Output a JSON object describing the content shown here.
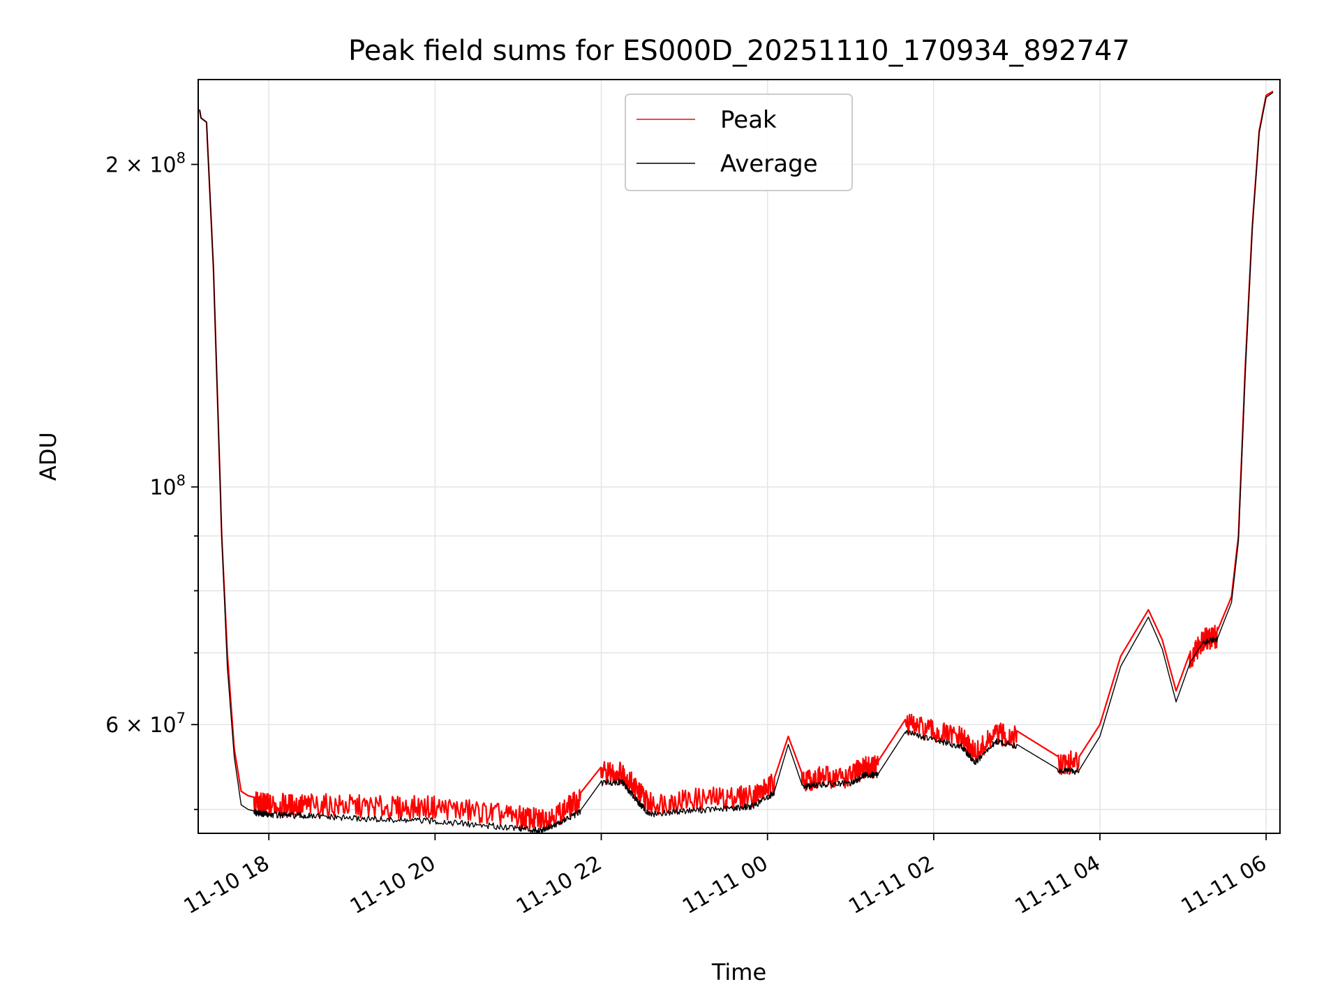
{
  "chart_data": {
    "type": "line",
    "title": "Peak field sums for ES000D_20251110_170934_892747",
    "xlabel": "Time",
    "ylabel": "ADU",
    "yscale": "log",
    "grid": true,
    "legend_placement": "upper-center",
    "xlim": [
      "2025-11-10 17:09",
      "2025-11-11 06:10"
    ],
    "ylim": [
      47500000,
      240000000
    ],
    "x_ticks": [
      {
        "value": "2025-11-10 18:00",
        "label": "11-10 18"
      },
      {
        "value": "2025-11-10 20:00",
        "label": "11-10 20"
      },
      {
        "value": "2025-11-10 22:00",
        "label": "11-10 22"
      },
      {
        "value": "2025-11-11 00:00",
        "label": "11-11 00"
      },
      {
        "value": "2025-11-11 02:00",
        "label": "11-11 02"
      },
      {
        "value": "2025-11-11 04:00",
        "label": "11-11 04"
      },
      {
        "value": "2025-11-11 06:00",
        "label": "11-11 06"
      }
    ],
    "y_ticks_major": [
      {
        "value": 60000000,
        "base": "6 × 10",
        "exp": "7"
      },
      {
        "value": 100000000,
        "base": "10",
        "exp": "8"
      },
      {
        "value": 200000000,
        "base": "2 × 10",
        "exp": "8"
      }
    ],
    "y_ticks_minor": [
      50000000,
      70000000,
      80000000,
      90000000
    ],
    "series": [
      {
        "name": "Peak",
        "color": "#ff0000",
        "x": [
          "2025-11-10 17:10",
          "2025-11-10 17:11",
          "2025-11-10 17:15",
          "2025-11-10 17:20",
          "2025-11-10 17:26",
          "2025-11-10 17:30",
          "2025-11-10 17:35",
          "2025-11-10 17:40",
          "2025-11-10 17:45",
          "2025-11-10 17:50",
          "2025-11-10 17:55",
          "2025-11-10 18:00",
          "2025-11-10 18:15",
          "2025-11-10 18:30",
          "2025-11-10 19:00",
          "2025-11-10 19:30",
          "2025-11-10 20:00",
          "2025-11-10 20:30",
          "2025-11-10 21:00",
          "2025-11-10 21:15",
          "2025-11-10 21:30",
          "2025-11-10 21:45",
          "2025-11-10 22:00",
          "2025-11-10 22:15",
          "2025-11-10 22:25",
          "2025-11-10 22:35",
          "2025-11-10 23:00",
          "2025-11-10 23:30",
          "2025-11-10 23:50",
          "2025-11-11 00:05",
          "2025-11-11 00:15",
          "2025-11-11 00:25",
          "2025-11-11 00:40",
          "2025-11-11 01:00",
          "2025-11-11 01:10",
          "2025-11-11 01:20",
          "2025-11-11 01:40",
          "2025-11-11 02:00",
          "2025-11-11 02:20",
          "2025-11-11 02:30",
          "2025-11-11 02:45",
          "2025-11-11 03:00",
          "2025-11-11 03:30",
          "2025-11-11 03:45",
          "2025-11-11 04:00",
          "2025-11-11 04:15",
          "2025-11-11 04:35",
          "2025-11-11 04:45",
          "2025-11-11 04:55",
          "2025-11-11 05:05",
          "2025-11-11 05:15",
          "2025-11-11 05:25",
          "2025-11-11 05:35",
          "2025-11-11 05:40",
          "2025-11-11 05:45",
          "2025-11-11 05:50",
          "2025-11-11 05:55",
          "2025-11-11 06:00",
          "2025-11-11 06:05"
        ],
        "values": [
          225000000,
          221000000,
          219000000,
          160000000,
          90000000,
          70000000,
          57000000,
          52000000,
          51500000,
          51300000,
          51200000,
          51100000,
          51100000,
          51100000,
          51000000,
          50800000,
          50900000,
          50400000,
          49800000,
          49500000,
          50200000,
          51800000,
          54800000,
          54800000,
          53000000,
          51200000,
          51700000,
          51900000,
          52200000,
          53500000,
          58500000,
          54000000,
          54200000,
          54300000,
          55500000,
          55500000,
          60800000,
          59800000,
          59000000,
          57000000,
          59500000,
          59200000,
          56000000,
          56000000,
          60000000,
          69500000,
          76800000,
          72000000,
          64500000,
          70000000,
          73000000,
          73500000,
          79000000,
          90000000,
          130000000,
          175000000,
          215000000,
          232000000,
          234000000
        ]
      },
      {
        "name": "Average",
        "color": "#000000",
        "x": [
          "2025-11-10 17:10",
          "2025-11-10 17:11",
          "2025-11-10 17:15",
          "2025-11-10 17:20",
          "2025-11-10 17:26",
          "2025-11-10 17:30",
          "2025-11-10 17:35",
          "2025-11-10 17:40",
          "2025-11-10 17:45",
          "2025-11-10 17:50",
          "2025-11-10 17:55",
          "2025-11-10 18:00",
          "2025-11-10 18:15",
          "2025-11-10 18:30",
          "2025-11-10 19:00",
          "2025-11-10 19:30",
          "2025-11-10 20:00",
          "2025-11-10 20:30",
          "2025-11-10 21:00",
          "2025-11-10 21:15",
          "2025-11-10 21:30",
          "2025-11-10 21:45",
          "2025-11-10 22:00",
          "2025-11-10 22:15",
          "2025-11-10 22:25",
          "2025-11-10 22:35",
          "2025-11-10 23:00",
          "2025-11-10 23:30",
          "2025-11-10 23:50",
          "2025-11-11 00:05",
          "2025-11-11 00:15",
          "2025-11-11 00:25",
          "2025-11-11 00:40",
          "2025-11-11 01:00",
          "2025-11-11 01:10",
          "2025-11-11 01:20",
          "2025-11-11 01:40",
          "2025-11-11 02:00",
          "2025-11-11 02:20",
          "2025-11-11 02:30",
          "2025-11-11 02:45",
          "2025-11-11 03:00",
          "2025-11-11 03:30",
          "2025-11-11 03:45",
          "2025-11-11 04:00",
          "2025-11-11 04:15",
          "2025-11-11 04:35",
          "2025-11-11 04:45",
          "2025-11-11 04:55",
          "2025-11-11 05:05",
          "2025-11-11 05:15",
          "2025-11-11 05:25",
          "2025-11-11 05:35",
          "2025-11-11 05:40",
          "2025-11-11 05:45",
          "2025-11-11 05:50",
          "2025-11-11 05:55",
          "2025-11-11 06:00",
          "2025-11-11 06:05"
        ],
        "values": [
          225000000,
          221000000,
          219000000,
          160000000,
          90000000,
          68000000,
          56000000,
          50500000,
          50000000,
          49800000,
          49700000,
          49600000,
          49500000,
          49400000,
          49200000,
          49000000,
          48900000,
          48500000,
          48200000,
          47900000,
          48700000,
          49900000,
          53100000,
          53200000,
          51200000,
          49600000,
          50000000,
          50200000,
          50500000,
          52000000,
          57500000,
          52700000,
          52900000,
          53000000,
          54000000,
          54000000,
          59200000,
          58200000,
          57400000,
          55400000,
          58000000,
          57500000,
          54500000,
          54400000,
          58500000,
          68000000,
          75600000,
          70600000,
          63000000,
          68500000,
          71800000,
          72300000,
          78000000,
          89000000,
          128000000,
          174000000,
          214000000,
          231000000,
          233500000
        ]
      }
    ]
  }
}
